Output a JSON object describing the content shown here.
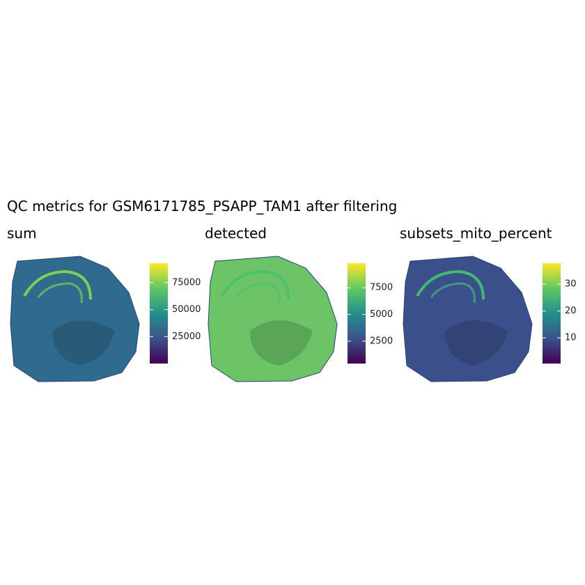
{
  "title": "QC metrics for GSM6171785_PSAPP_TAM1 after filtering",
  "chart_data": [
    {
      "type": "spatial",
      "title": "sum",
      "colors": [
        "#440154",
        "#3b528b",
        "#21918c",
        "#5ec962",
        "#fde725"
      ],
      "clim": [
        0,
        93000
      ],
      "cticks": [
        25000,
        50000,
        75000
      ]
    },
    {
      "type": "spatial",
      "title": "detected",
      "colors": [
        "#440154",
        "#3b528b",
        "#21918c",
        "#5ec962",
        "#fde725"
      ],
      "clim": [
        400,
        9800
      ],
      "cticks": [
        2500,
        5000,
        7500
      ]
    },
    {
      "type": "spatial",
      "title": "subsets_mito_percent",
      "colors": [
        "#440154",
        "#3b528b",
        "#21918c",
        "#5ec962",
        "#fde725"
      ],
      "clim": [
        0.4,
        37.8
      ],
      "cticks": [
        10,
        20,
        30
      ]
    }
  ]
}
